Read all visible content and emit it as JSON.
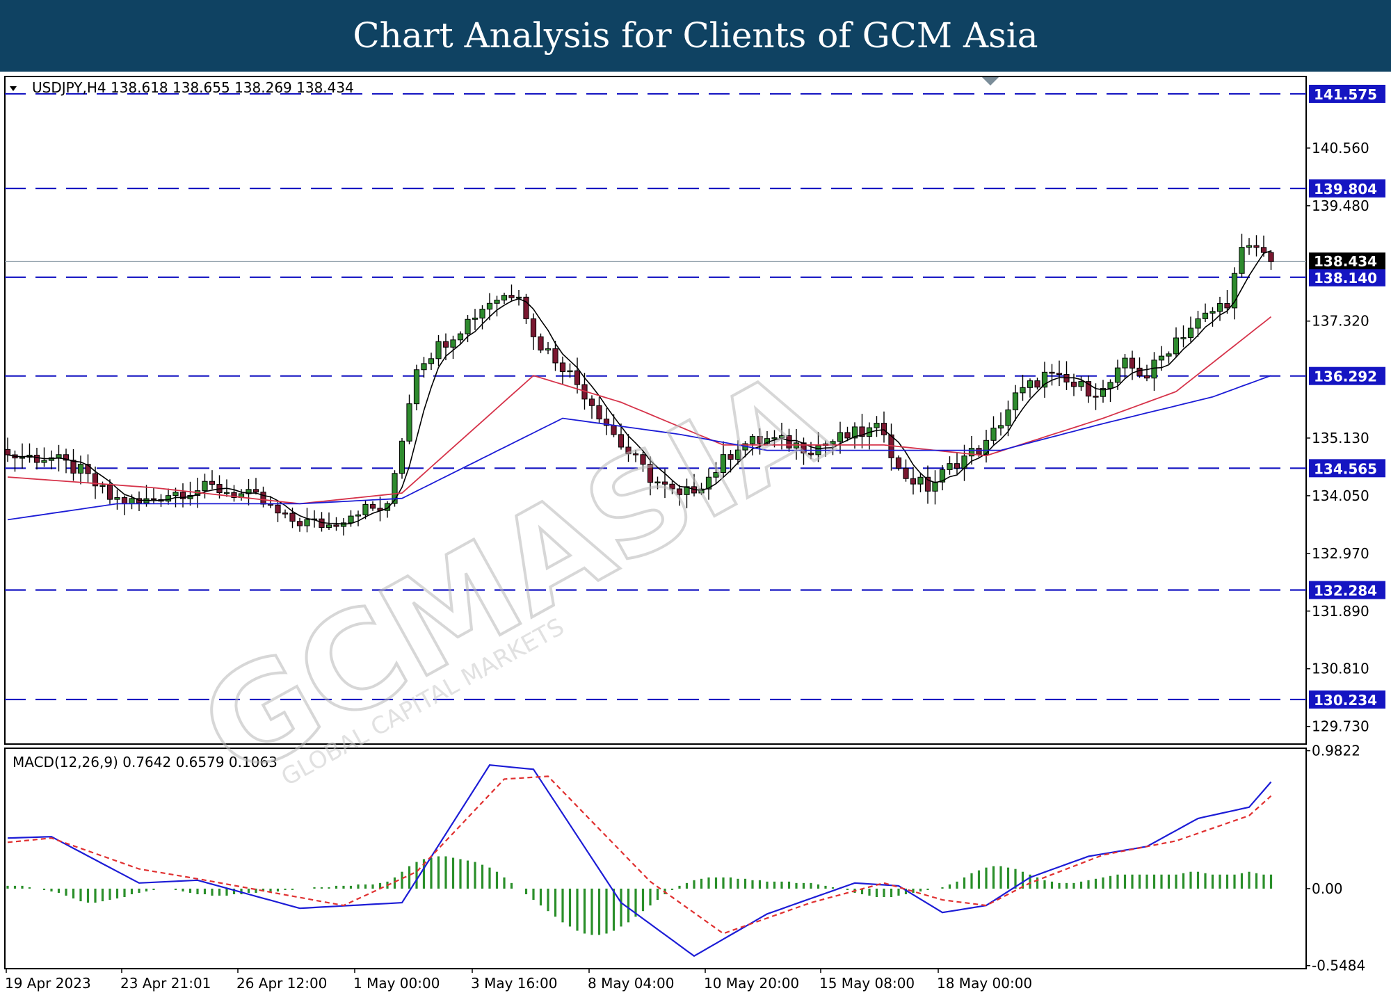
{
  "header": {
    "title": "Chart Analysis for Clients of GCM Asia"
  },
  "watermark": {
    "brand": "GCMASIA",
    "tagline": "GLOBAL CAPITAL MARKETS"
  },
  "colors": {
    "banner": "#0f4262",
    "bull_candle": "#2e8b2e",
    "bear_candle": "#7a1730",
    "fast_ma": "#000000",
    "mid_ma": "#d6334a",
    "slow_ma": "#1c1cd6",
    "level_line": "#1515c2",
    "macd_line": "#1c1cd6",
    "signal_line": "#e03030",
    "histogram": "#2a8f2a"
  },
  "chart_data": [
    {
      "type": "candlestick",
      "symbol_label": "USDJPY,H4",
      "ohlc_label": [
        "138.618",
        "138.655",
        "138.269",
        "138.434"
      ],
      "current_price": "138.434",
      "ylim": [
        129.4,
        141.9
      ],
      "y_tick_labels": [
        "140.560",
        "139.480",
        "137.320",
        "135.130",
        "134.050",
        "132.970",
        "131.890",
        "130.810",
        "129.730"
      ],
      "x_tick_labels": [
        "19 Apr 2023",
        "23 Apr 21:01",
        "26 Apr 12:00",
        "1 May 00:00",
        "3 May 16:00",
        "8 May 04:00",
        "10 May 20:00",
        "15 May 08:00",
        "18 May 00:00"
      ],
      "horizontal_levels": [
        "141.575",
        "139.804",
        "138.140",
        "136.292",
        "134.565",
        "132.284",
        "130.234"
      ],
      "price_path": [
        [
          0,
          134.8
        ],
        [
          6,
          134.75
        ],
        [
          10,
          134.5
        ],
        [
          14,
          134.0
        ],
        [
          18,
          133.9
        ],
        [
          22,
          134.1
        ],
        [
          28,
          134.2
        ],
        [
          34,
          134.0
        ],
        [
          38,
          133.6
        ],
        [
          44,
          133.5
        ],
        [
          48,
          133.8
        ],
        [
          52,
          133.8
        ],
        [
          56,
          136.5
        ],
        [
          62,
          137.2
        ],
        [
          66,
          137.7
        ],
        [
          70,
          137.9
        ],
        [
          72,
          137.0
        ],
        [
          76,
          136.5
        ],
        [
          80,
          135.8
        ],
        [
          84,
          135.0
        ],
        [
          88,
          134.4
        ],
        [
          92,
          134.0
        ],
        [
          96,
          134.4
        ],
        [
          100,
          135.0
        ],
        [
          104,
          135.1
        ],
        [
          110,
          134.95
        ],
        [
          116,
          135.2
        ],
        [
          120,
          135.3
        ],
        [
          122,
          134.5
        ],
        [
          126,
          134.2
        ],
        [
          130,
          134.7
        ],
        [
          134,
          135.0
        ],
        [
          138,
          135.9
        ],
        [
          142,
          136.3
        ],
        [
          146,
          136.1
        ],
        [
          150,
          136.0
        ],
        [
          153,
          136.5
        ],
        [
          156,
          136.3
        ],
        [
          160,
          137.0
        ],
        [
          164,
          137.4
        ],
        [
          167,
          137.7
        ],
        [
          169,
          138.6
        ],
        [
          171,
          138.7
        ],
        [
          173,
          138.434
        ]
      ],
      "moving_average_paths": [
        {
          "color": "#d6334a",
          "points": [
            [
              0,
              134.4
            ],
            [
              20,
              134.2
            ],
            [
              40,
              133.9
            ],
            [
              54,
              134.1
            ],
            [
              72,
              136.3
            ],
            [
              84,
              135.8
            ],
            [
              98,
              135.0
            ],
            [
              120,
              135.0
            ],
            [
              134,
              134.8
            ],
            [
              150,
              135.5
            ],
            [
              160,
              136.0
            ],
            [
              173,
              137.4
            ]
          ]
        },
        {
          "color": "#1c1cd6",
          "points": [
            [
              0,
              133.6
            ],
            [
              15,
              133.9
            ],
            [
              40,
              133.9
            ],
            [
              54,
              134.0
            ],
            [
              76,
              135.5
            ],
            [
              92,
              135.2
            ],
            [
              104,
              134.9
            ],
            [
              130,
              134.9
            ],
            [
              136,
              134.9
            ],
            [
              150,
              135.4
            ],
            [
              165,
              135.9
            ],
            [
              173,
              136.3
            ]
          ]
        }
      ]
    },
    {
      "type": "macd",
      "label": "MACD(12,26,9) 0.7642 0.6579 0.1063",
      "ylim": [
        -0.57,
        1.0
      ],
      "y_tick_labels": [
        "0.9822",
        "0.00",
        "-0.5484"
      ],
      "macd_path": [
        [
          0,
          0.36
        ],
        [
          6,
          0.37
        ],
        [
          18,
          0.04
        ],
        [
          26,
          0.06
        ],
        [
          40,
          -0.14
        ],
        [
          54,
          -0.1
        ],
        [
          66,
          0.88
        ],
        [
          72,
          0.85
        ],
        [
          84,
          -0.1
        ],
        [
          94,
          -0.48
        ],
        [
          104,
          -0.18
        ],
        [
          116,
          0.04
        ],
        [
          122,
          0.02
        ],
        [
          128,
          -0.17
        ],
        [
          134,
          -0.12
        ],
        [
          140,
          0.08
        ],
        [
          148,
          0.23
        ],
        [
          156,
          0.3
        ],
        [
          163,
          0.5
        ],
        [
          170,
          0.58
        ],
        [
          173,
          0.76
        ]
      ],
      "signal_path": [
        [
          0,
          0.33
        ],
        [
          6,
          0.36
        ],
        [
          18,
          0.14
        ],
        [
          26,
          0.07
        ],
        [
          46,
          -0.12
        ],
        [
          56,
          0.12
        ],
        [
          68,
          0.78
        ],
        [
          74,
          0.8
        ],
        [
          88,
          0.05
        ],
        [
          98,
          -0.32
        ],
        [
          110,
          -0.1
        ],
        [
          120,
          0.04
        ],
        [
          128,
          -0.08
        ],
        [
          134,
          -0.12
        ],
        [
          140,
          0.04
        ],
        [
          150,
          0.24
        ],
        [
          160,
          0.34
        ],
        [
          170,
          0.52
        ],
        [
          173,
          0.66
        ]
      ],
      "histogram": [
        0.02,
        0.02,
        0.02,
        0.01,
        0.0,
        -0.01,
        -0.02,
        -0.03,
        -0.05,
        -0.07,
        -0.09,
        -0.1,
        -0.1,
        -0.09,
        -0.08,
        -0.07,
        -0.06,
        -0.04,
        -0.03,
        -0.02,
        -0.01,
        0.0,
        0.0,
        -0.01,
        -0.02,
        -0.03,
        -0.04,
        -0.04,
        -0.05,
        -0.05,
        -0.05,
        -0.04,
        -0.04,
        -0.03,
        -0.03,
        -0.02,
        -0.02,
        -0.02,
        -0.01,
        -0.01,
        0.0,
        0.0,
        0.01,
        0.01,
        0.01,
        0.02,
        0.02,
        0.02,
        0.03,
        0.03,
        0.03,
        0.04,
        0.05,
        0.08,
        0.12,
        0.16,
        0.19,
        0.21,
        0.22,
        0.23,
        0.23,
        0.22,
        0.21,
        0.2,
        0.19,
        0.17,
        0.15,
        0.12,
        0.08,
        0.04,
        0.0,
        -0.04,
        -0.08,
        -0.12,
        -0.16,
        -0.2,
        -0.24,
        -0.27,
        -0.3,
        -0.32,
        -0.33,
        -0.33,
        -0.32,
        -0.3,
        -0.27,
        -0.24,
        -0.2,
        -0.16,
        -0.12,
        -0.08,
        -0.04,
        -0.01,
        0.02,
        0.04,
        0.06,
        0.07,
        0.08,
        0.08,
        0.08,
        0.08,
        0.07,
        0.07,
        0.06,
        0.06,
        0.05,
        0.05,
        0.05,
        0.05,
        0.04,
        0.04,
        0.04,
        0.03,
        0.02,
        0.01,
        0.0,
        -0.01,
        -0.03,
        -0.04,
        -0.05,
        -0.06,
        -0.06,
        -0.06,
        -0.05,
        -0.04,
        -0.03,
        -0.02,
        -0.01,
        0.0,
        0.01,
        0.03,
        0.05,
        0.08,
        0.11,
        0.13,
        0.15,
        0.16,
        0.16,
        0.15,
        0.14,
        0.12,
        0.1,
        0.08,
        0.06,
        0.05,
        0.04,
        0.04,
        0.04,
        0.05,
        0.06,
        0.07,
        0.08,
        0.09,
        0.1,
        0.1,
        0.1,
        0.1,
        0.1,
        0.1,
        0.1,
        0.1,
        0.1,
        0.11,
        0.12,
        0.12,
        0.11,
        0.1,
        0.1,
        0.1,
        0.1,
        0.11,
        0.12,
        0.11,
        0.1,
        0.1
      ]
    }
  ]
}
